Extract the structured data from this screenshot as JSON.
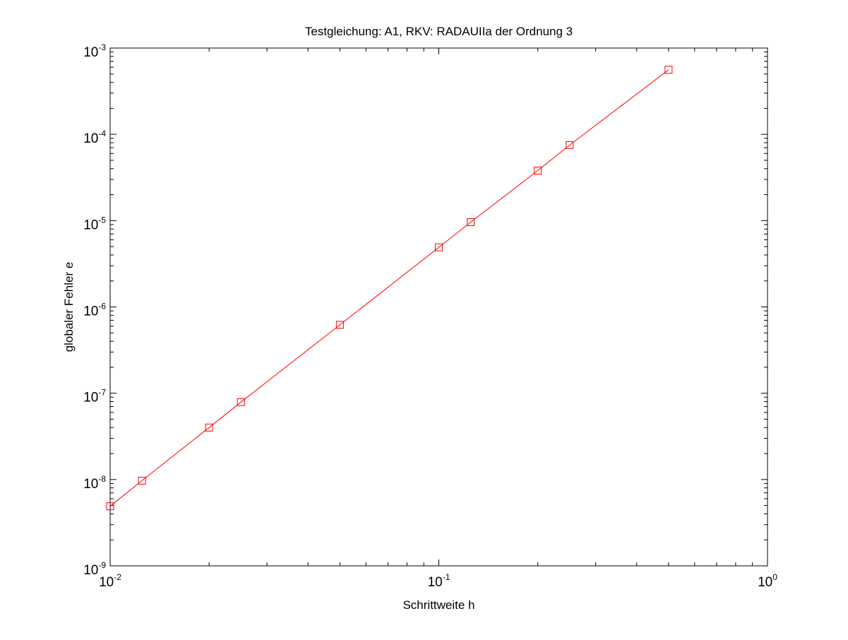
{
  "chart_data": {
    "type": "line",
    "title": "Testgleichung: A1, RKV: RADAUIIa der Ordnung 3",
    "xlabel": "Schrittweite h",
    "ylabel": "globaler Fehler e",
    "xscale": "log",
    "yscale": "log",
    "xlim": [
      0.01,
      1
    ],
    "ylim": [
      1e-09,
      0.001
    ],
    "grid": false,
    "legend": "none",
    "x_tick_labels": [
      {
        "base": "10",
        "exp": "-2"
      },
      {
        "base": "10",
        "exp": "-1"
      },
      {
        "base": "10",
        "exp": "0"
      }
    ],
    "y_tick_labels": [
      {
        "base": "10",
        "exp": "-9"
      },
      {
        "base": "10",
        "exp": "-8"
      },
      {
        "base": "10",
        "exp": "-7"
      },
      {
        "base": "10",
        "exp": "-6"
      },
      {
        "base": "10",
        "exp": "-5"
      },
      {
        "base": "10",
        "exp": "-4"
      },
      {
        "base": "10",
        "exp": "-3"
      }
    ],
    "series": [
      {
        "color": "#ff0000",
        "marker": "square",
        "x": [
          0.01,
          0.0125,
          0.02,
          0.025,
          0.05,
          0.1,
          0.125,
          0.2,
          0.25,
          0.5
        ],
        "y": [
          4.9e-09,
          9.7e-09,
          4e-08,
          7.9e-08,
          6.2e-07,
          4.9e-06,
          9.6e-06,
          3.8e-05,
          7.5e-05,
          0.00056
        ]
      }
    ]
  }
}
